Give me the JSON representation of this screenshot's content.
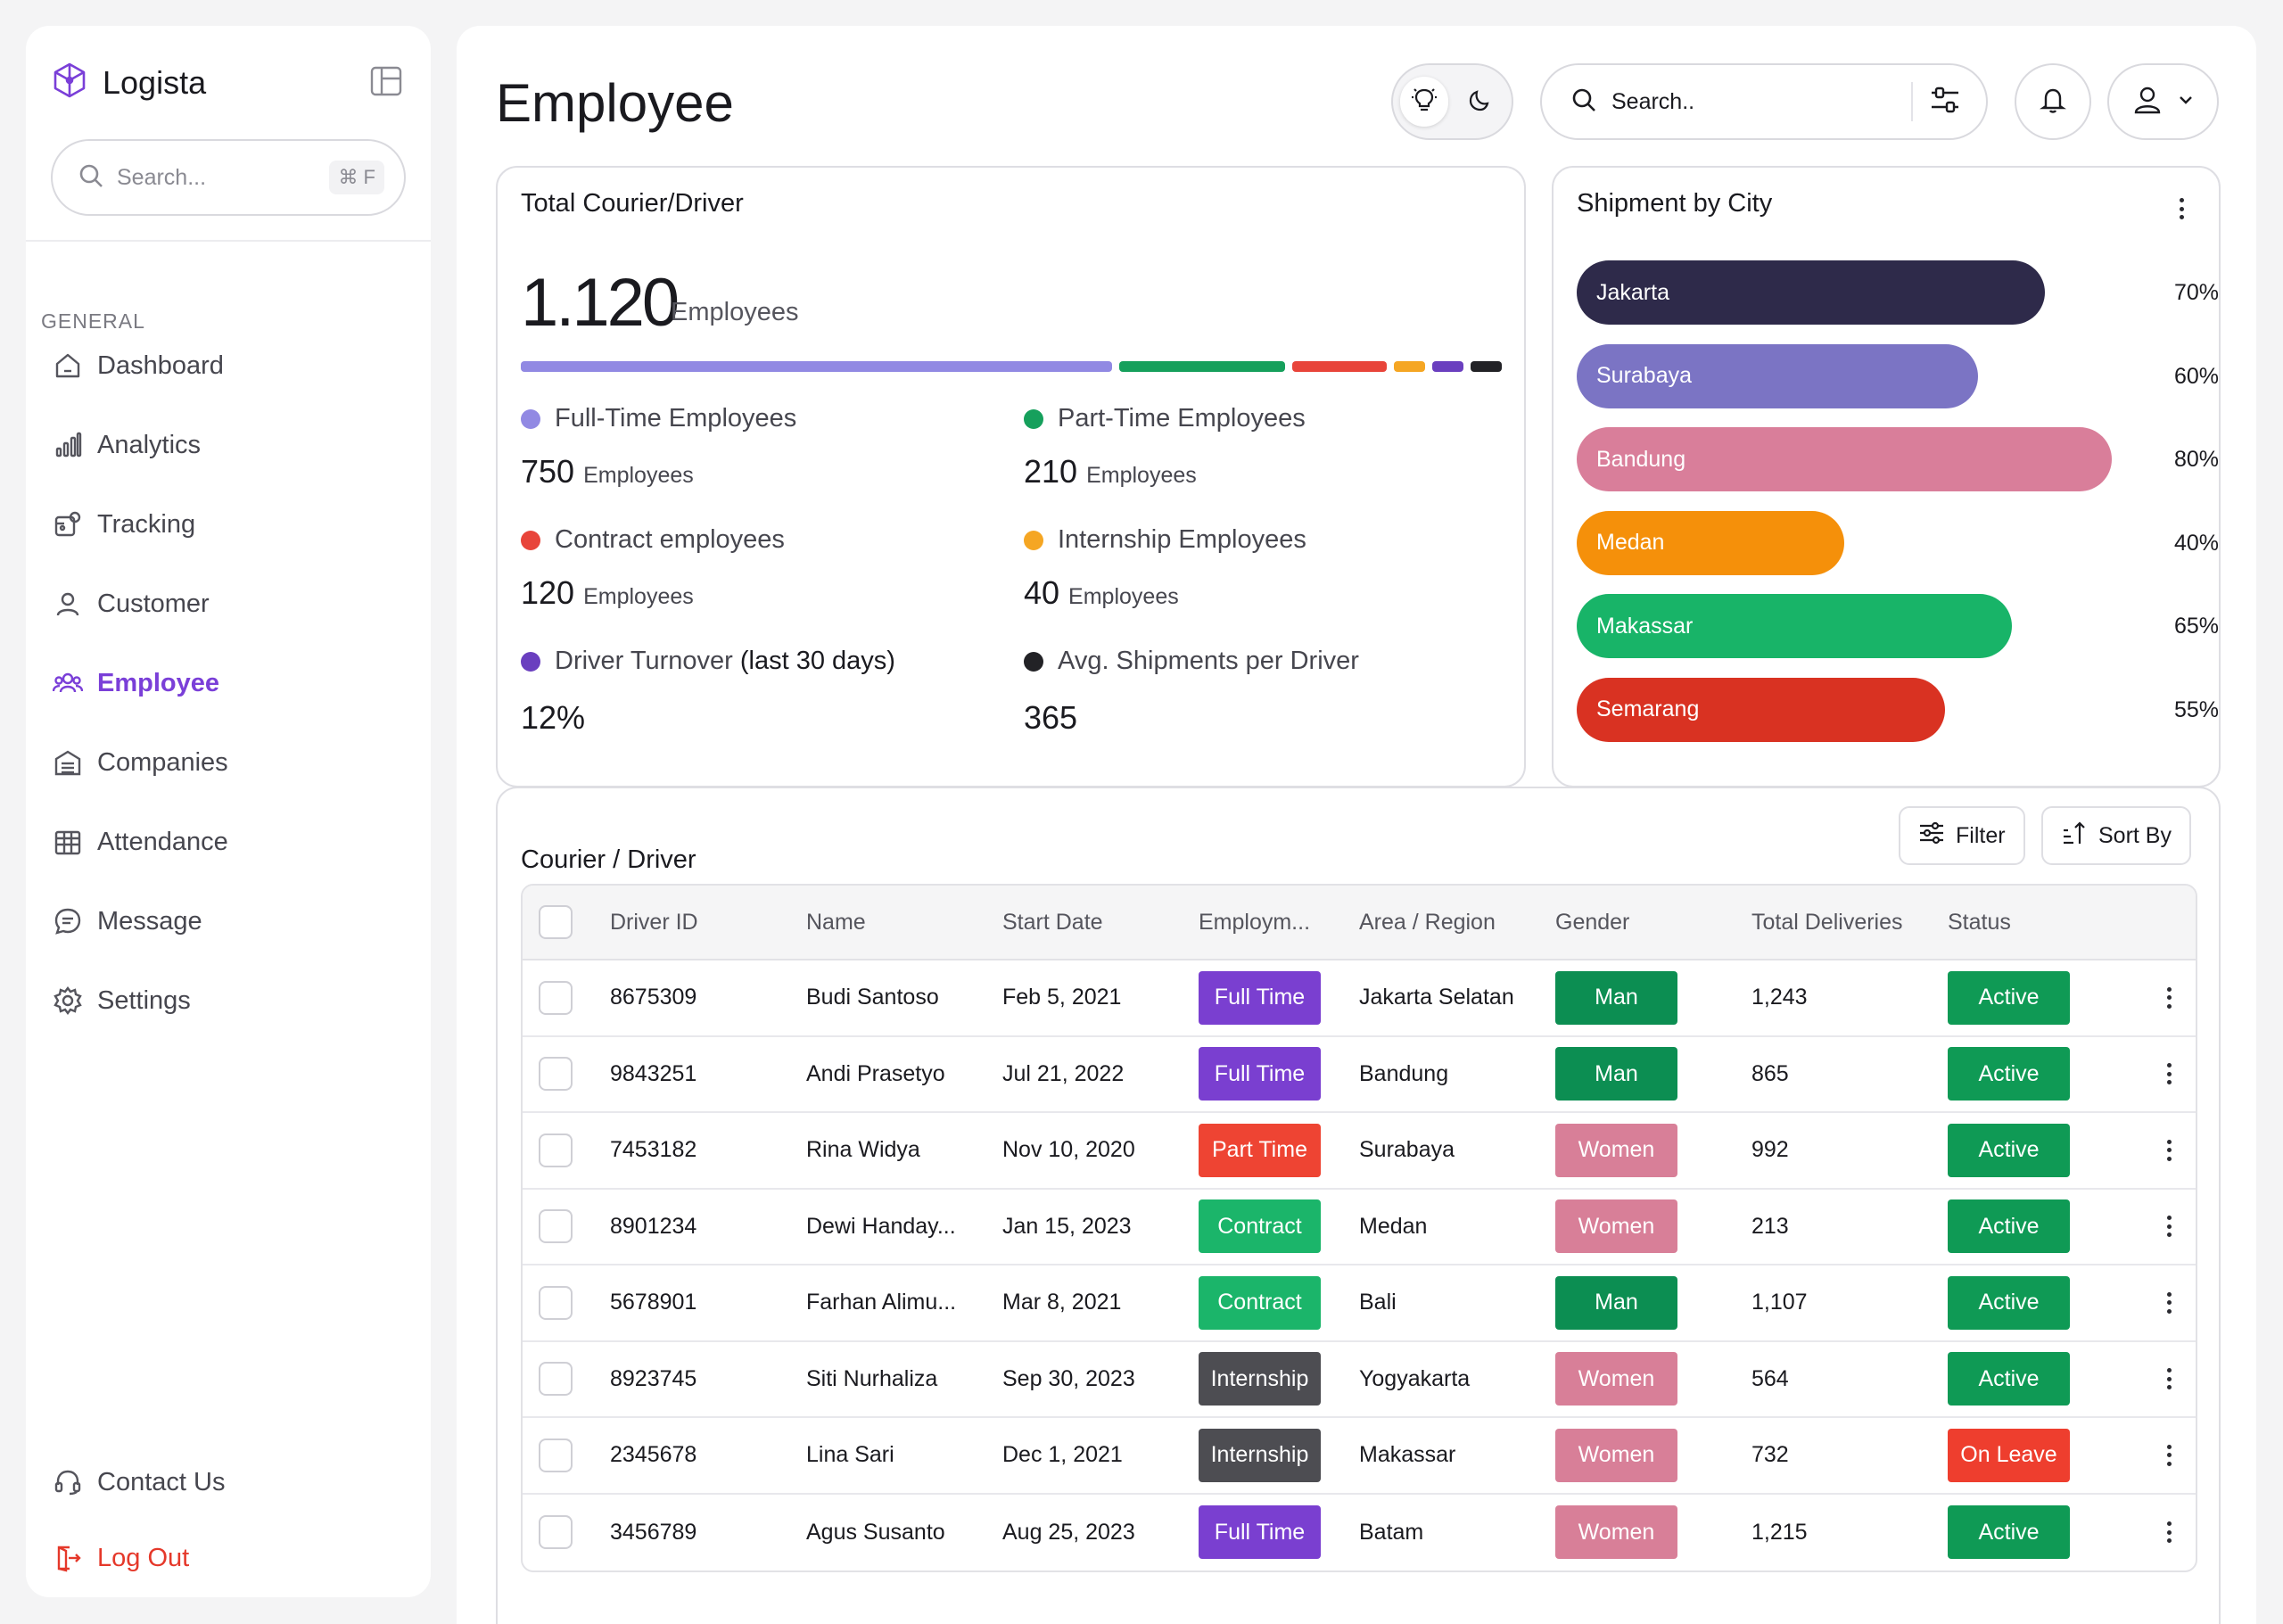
{
  "sidebar": {
    "brand": "Logista",
    "search_placeholder": "Search...",
    "search_shortcut": "⌘ F",
    "section": "GENERAL",
    "items": [
      {
        "label": "Dashboard",
        "icon": "home-icon"
      },
      {
        "label": "Analytics",
        "icon": "bar-chart-icon"
      },
      {
        "label": "Tracking",
        "icon": "tracking-icon"
      },
      {
        "label": "Customer",
        "icon": "user-icon"
      },
      {
        "label": "Employee",
        "icon": "users-icon",
        "active": true
      },
      {
        "label": "Companies",
        "icon": "building-icon"
      },
      {
        "label": "Attendance",
        "icon": "calendar-icon"
      },
      {
        "label": "Message",
        "icon": "message-icon"
      },
      {
        "label": "Settings",
        "icon": "gear-icon"
      }
    ],
    "contact": "Contact Us",
    "logout": "Log Out"
  },
  "header": {
    "title": "Employee",
    "search_placeholder": "Search.."
  },
  "couriers": {
    "title": "Total Courier/Driver",
    "total": "1.120",
    "total_unit": "Employees",
    "composition": [
      {
        "label": "Full-Time",
        "value": 750,
        "color": "#9189e3"
      },
      {
        "label": "Part-Time",
        "value": 210,
        "color": "#16a05c"
      },
      {
        "label": "Contract",
        "value": 120,
        "color": "#e8443a"
      },
      {
        "label": "Internship",
        "value": 40,
        "color": "#f5a623"
      },
      {
        "label": "Turnover",
        "value": 40,
        "color": "#6a3fbf"
      },
      {
        "label": "Avg",
        "value": 40,
        "color": "#222226"
      }
    ],
    "stats": {
      "fulltime": {
        "label": "Full-Time Employees",
        "value": "750",
        "unit": "Employees",
        "color": "#9189e3"
      },
      "parttime": {
        "label": "Part-Time Employees",
        "value": "210",
        "unit": "Employees",
        "color": "#16a05c"
      },
      "contract": {
        "label": "Contract employees",
        "value": "120",
        "unit": "Employees",
        "color": "#e8443a"
      },
      "internship": {
        "label": "Internship Employees",
        "value": "40",
        "unit": "Employees",
        "color": "#f5a623"
      },
      "turnover": {
        "label": "Driver Turnover ",
        "label_strong": "(last 30 days)",
        "value": "12%",
        "color": "#6a3fbf"
      },
      "avg": {
        "label": "Avg. Shipments per Driver",
        "value": "365",
        "color": "#222226"
      }
    }
  },
  "shipment": {
    "title": "Shipment by City",
    "cities": [
      {
        "name": "Jakarta",
        "pct": 70,
        "label": "70%",
        "color": "#2e2a4a"
      },
      {
        "name": "Surabaya",
        "pct": 60,
        "label": "60%",
        "color": "#7b74c4"
      },
      {
        "name": "Bandung",
        "pct": 80,
        "label": "80%",
        "color": "#d97e9a"
      },
      {
        "name": "Medan",
        "pct": 40,
        "label": "40%",
        "color": "#f5900a"
      },
      {
        "name": "Makassar",
        "pct": 65,
        "label": "65%",
        "color": "#18b468"
      },
      {
        "name": "Semarang",
        "pct": 55,
        "label": "55%",
        "color": "#d93222"
      }
    ]
  },
  "table": {
    "title": "Courier / Driver",
    "filter": "Filter",
    "sort": "Sort By",
    "columns": [
      "Driver ID",
      "Name",
      "Start Date",
      "Employm...",
      "Area / Region",
      "Gender",
      "Total Deliveries",
      "Status"
    ],
    "rows": [
      {
        "id": "8675309",
        "name": "Budi Santoso",
        "date": "Feb 5, 2021",
        "type": "Full Time",
        "area": "Jakarta Selatan",
        "gender": "Man",
        "deliveries": "1,243",
        "status": "Active"
      },
      {
        "id": "9843251",
        "name": "Andi Prasetyo",
        "date": "Jul 21, 2022",
        "type": "Full Time",
        "area": "Bandung",
        "gender": "Man",
        "deliveries": "865",
        "status": "Active"
      },
      {
        "id": "7453182",
        "name": "Rina Widya",
        "date": "Nov 10, 2020",
        "type": "Part Time",
        "area": "Surabaya",
        "gender": "Women",
        "deliveries": "992",
        "status": "Active"
      },
      {
        "id": "8901234",
        "name": "Dewi Handay...",
        "date": "Jan 15, 2023",
        "type": "Contract",
        "area": "Medan",
        "gender": "Women",
        "deliveries": "213",
        "status": "Active"
      },
      {
        "id": "5678901",
        "name": "Farhan Alimu...",
        "date": "Mar 8, 2021",
        "type": "Contract",
        "area": "Bali",
        "gender": "Man",
        "deliveries": "1,107",
        "status": "Active"
      },
      {
        "id": "8923745",
        "name": "Siti Nurhaliza",
        "date": "Sep 30, 2023",
        "type": "Internship",
        "area": "Yogyakarta",
        "gender": "Women",
        "deliveries": "564",
        "status": "Active"
      },
      {
        "id": "2345678",
        "name": "Lina Sari",
        "date": "Dec 1, 2021",
        "type": "Internship",
        "area": "Makassar",
        "gender": "Women",
        "deliveries": "732",
        "status": "On Leave"
      },
      {
        "id": "3456789",
        "name": "Agus Susanto",
        "date": "Aug 25, 2023",
        "type": "Full Time",
        "area": "Batam",
        "gender": "Women",
        "deliveries": "1,215",
        "status": "Active"
      }
    ],
    "colors": {
      "Full Time": "#7a3fd0",
      "Part Time": "#ee4433",
      "Contract": "#1bb56a",
      "Internship": "#4d4d52",
      "Man": "#0c8e52",
      "Women": "#d87f98",
      "Active": "#0f9a55",
      "On Leave": "#ee3e2e"
    }
  }
}
